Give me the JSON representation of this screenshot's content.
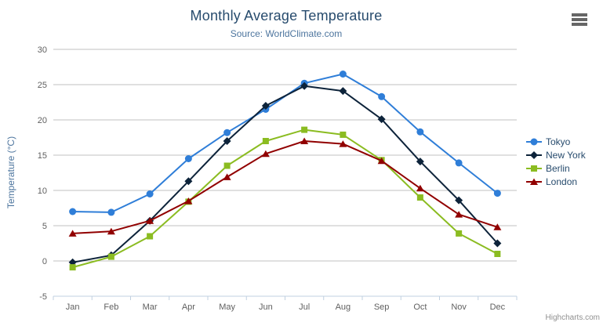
{
  "chart_data": {
    "type": "line",
    "title": "Monthly Average Temperature",
    "subtitle": "Source: WorldClimate.com",
    "xlabel": "",
    "ylabel": "Temperature (°C)",
    "categories": [
      "Jan",
      "Feb",
      "Mar",
      "Apr",
      "May",
      "Jun",
      "Jul",
      "Aug",
      "Sep",
      "Oct",
      "Nov",
      "Dec"
    ],
    "ylim": [
      -5,
      30
    ],
    "ytick_step": 5,
    "grid": true,
    "legend_position": "right",
    "series": [
      {
        "name": "Tokyo",
        "color": "#2f7ed8",
        "marker": "circle",
        "values": [
          7.0,
          6.9,
          9.5,
          14.5,
          18.2,
          21.5,
          25.2,
          26.5,
          23.3,
          18.3,
          13.9,
          9.6
        ]
      },
      {
        "name": "New York",
        "color": "#0d233a",
        "marker": "diamond",
        "values": [
          -0.2,
          0.8,
          5.7,
          11.3,
          17.0,
          22.0,
          24.8,
          24.1,
          20.1,
          14.1,
          8.6,
          2.5
        ]
      },
      {
        "name": "Berlin",
        "color": "#8bbc21",
        "marker": "square",
        "values": [
          -0.9,
          0.6,
          3.5,
          8.4,
          13.5,
          17.0,
          18.6,
          17.9,
          14.3,
          9.0,
          3.9,
          1.0
        ]
      },
      {
        "name": "London",
        "color": "#910000",
        "marker": "triangle",
        "values": [
          3.9,
          4.2,
          5.7,
          8.5,
          11.9,
          15.2,
          17.0,
          16.6,
          14.2,
          10.3,
          6.6,
          4.8
        ]
      }
    ]
  },
  "credits": "Highcharts.com",
  "colors": {
    "grid": "#c0c0c0",
    "axis_line": "#c0d0e0",
    "axis_label": "#606060",
    "title": "#274b6d",
    "subtitle": "#4d759e",
    "legend_label": "#274b6d"
  }
}
